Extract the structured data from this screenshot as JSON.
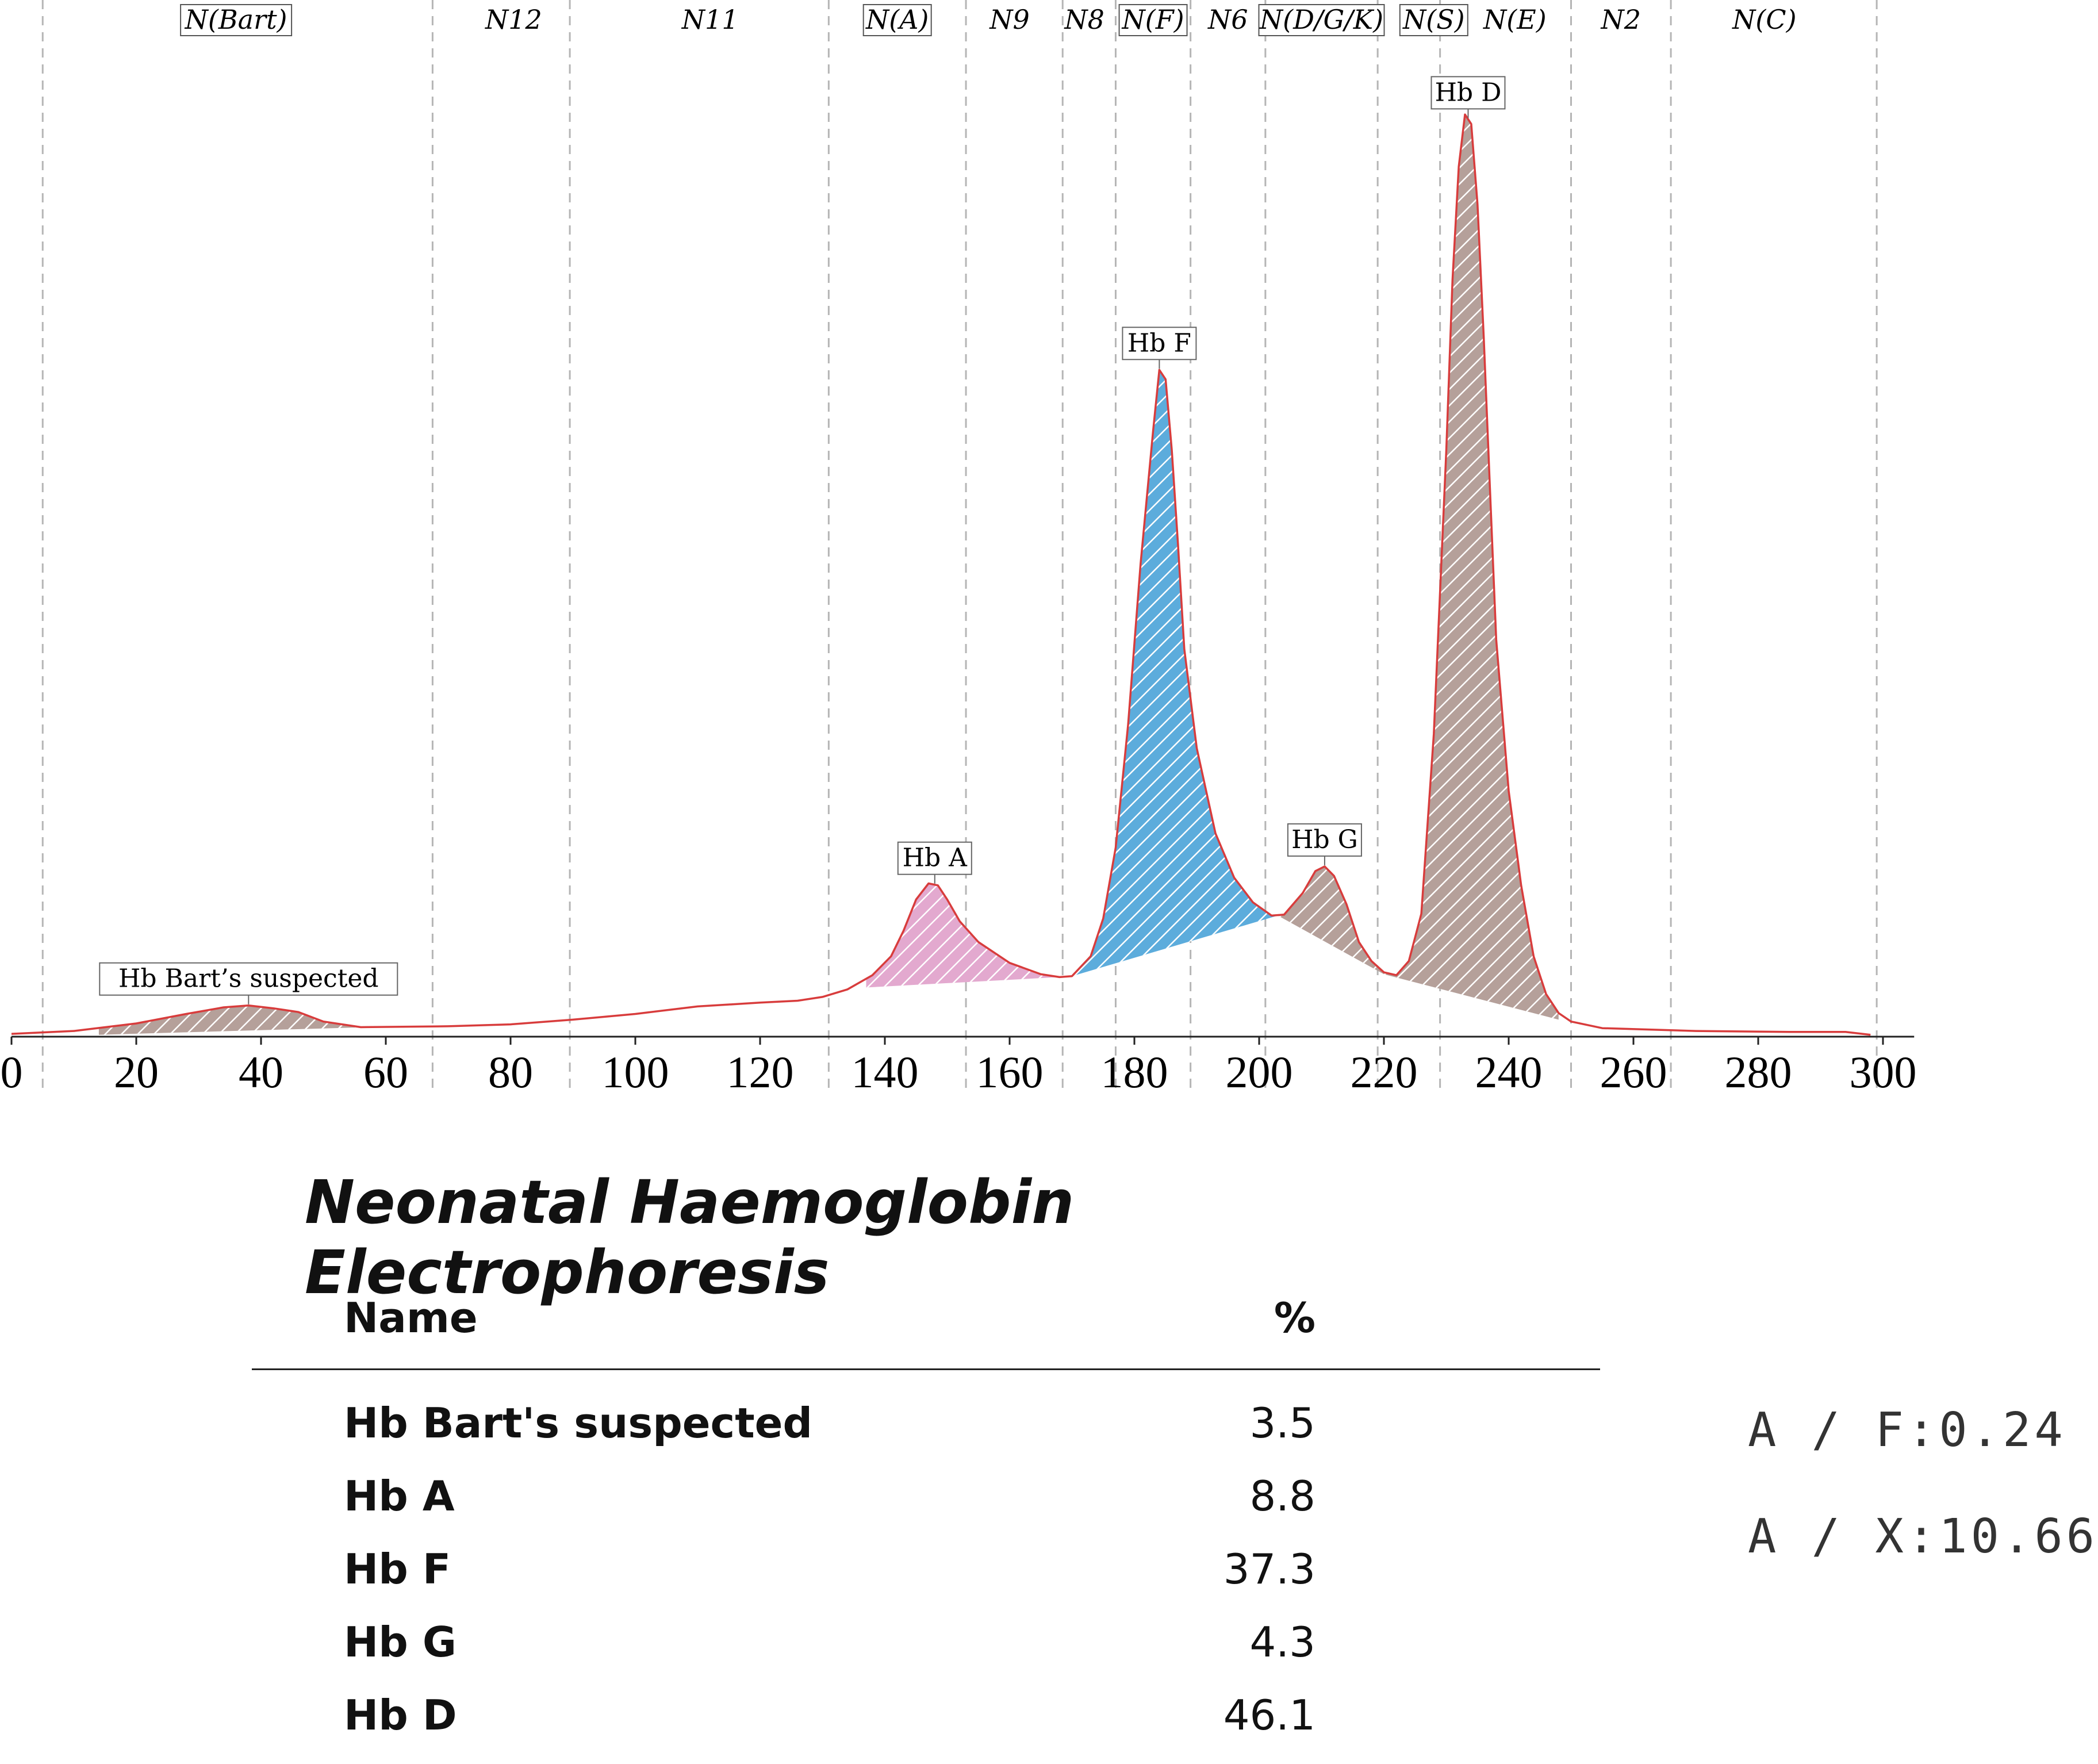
{
  "chart_data": {
    "type": "area",
    "title": "Neonatal Haemoglobin Electrophoresis",
    "xlim": [
      0,
      300
    ],
    "ylim": [
      0,
      100
    ],
    "x_ticks": [
      0,
      20,
      40,
      60,
      80,
      100,
      120,
      140,
      160,
      180,
      200,
      220,
      240,
      260,
      280,
      300
    ],
    "zone_boundaries": [
      5,
      67.5,
      89.5,
      131,
      153,
      168.5,
      177,
      189,
      201,
      219,
      229,
      250,
      266,
      299
    ],
    "zones": [
      {
        "label": "N(Bart)",
        "center": 36,
        "boxed": true
      },
      {
        "label": "N12",
        "center": 80.5,
        "boxed": false
      },
      {
        "label": "N11",
        "center": 112,
        "boxed": false
      },
      {
        "label": "N(A)",
        "center": 142,
        "boxed": true
      },
      {
        "label": "N9",
        "center": 160,
        "boxed": false
      },
      {
        "label": "N8",
        "center": 172,
        "boxed": false
      },
      {
        "label": "N(F)",
        "center": 183,
        "boxed": true
      },
      {
        "label": "N6",
        "center": 195,
        "boxed": false
      },
      {
        "label": "N(D/G/K)",
        "center": 210,
        "boxed": true
      },
      {
        "label": "N(S)",
        "center": 228,
        "boxed": true
      },
      {
        "label": "N(E)",
        "center": 241,
        "boxed": false
      },
      {
        "label": "N2",
        "center": 258,
        "boxed": false
      },
      {
        "label": "N(C)",
        "center": 281,
        "boxed": false
      }
    ],
    "trace": [
      [
        0,
        0.3
      ],
      [
        10,
        0.6
      ],
      [
        20,
        1.4
      ],
      [
        28,
        2.4
      ],
      [
        34,
        3.1
      ],
      [
        38,
        3.3
      ],
      [
        42,
        3.0
      ],
      [
        46,
        2.6
      ],
      [
        50,
        1.6
      ],
      [
        56,
        1.0
      ],
      [
        70,
        1.1
      ],
      [
        80,
        1.3
      ],
      [
        90,
        1.8
      ],
      [
        100,
        2.4
      ],
      [
        110,
        3.2
      ],
      [
        120,
        3.6
      ],
      [
        126,
        3.8
      ],
      [
        130,
        4.2
      ],
      [
        134,
        5.0
      ],
      [
        138,
        6.5
      ],
      [
        141,
        8.5
      ],
      [
        143,
        11.2
      ],
      [
        145,
        14.5
      ],
      [
        147,
        16.2
      ],
      [
        148.5,
        16.0
      ],
      [
        150,
        14.5
      ],
      [
        152,
        12.2
      ],
      [
        155,
        10.0
      ],
      [
        160,
        7.8
      ],
      [
        165,
        6.6
      ],
      [
        168,
        6.3
      ],
      [
        170,
        6.4
      ],
      [
        173,
        8.5
      ],
      [
        175,
        12.5
      ],
      [
        177,
        20.0
      ],
      [
        179,
        33.0
      ],
      [
        181,
        50.0
      ],
      [
        183,
        64.0
      ],
      [
        184,
        70.5
      ],
      [
        185,
        69.5
      ],
      [
        186,
        62.0
      ],
      [
        187,
        52.0
      ],
      [
        188,
        41.0
      ],
      [
        190,
        30.5
      ],
      [
        193,
        21.5
      ],
      [
        196,
        16.8
      ],
      [
        199,
        14.2
      ],
      [
        202,
        12.8
      ],
      [
        204,
        12.9
      ],
      [
        207,
        15.2
      ],
      [
        209,
        17.5
      ],
      [
        210.5,
        18.0
      ],
      [
        212,
        17.0
      ],
      [
        214,
        14.0
      ],
      [
        216,
        10.0
      ],
      [
        218,
        8.0
      ],
      [
        220,
        6.8
      ],
      [
        222,
        6.5
      ],
      [
        224,
        8.0
      ],
      [
        226,
        13.0
      ],
      [
        228,
        32.0
      ],
      [
        230,
        62.0
      ],
      [
        231,
        80.0
      ],
      [
        232,
        92.0
      ],
      [
        233,
        97.5
      ],
      [
        234,
        96.5
      ],
      [
        235,
        88.0
      ],
      [
        236,
        74.0
      ],
      [
        237,
        58.0
      ],
      [
        238,
        42.0
      ],
      [
        240,
        26.0
      ],
      [
        242,
        16.0
      ],
      [
        244,
        8.5
      ],
      [
        246,
        4.5
      ],
      [
        248,
        2.5
      ],
      [
        250,
        1.6
      ],
      [
        255,
        0.9
      ],
      [
        270,
        0.6
      ],
      [
        285,
        0.5
      ],
      [
        294,
        0.5
      ],
      [
        298,
        0.2
      ]
    ],
    "peaks": [
      {
        "name": "Hb Bart's suspected",
        "label": "Hb Bart’s suspected",
        "apex_x": 38,
        "percent": "3.5",
        "color": "#b5a09a",
        "range": [
          14,
          57
        ],
        "baseline": [
          [
            14,
            0.2
          ],
          [
            57,
            1.0
          ]
        ]
      },
      {
        "name": "Hb A",
        "label": "Hb A",
        "apex_x": 148,
        "percent": "8.8",
        "color": "#e3a9cf",
        "range": [
          137,
          168
        ],
        "baseline": [
          [
            137,
            5.2
          ],
          [
            168,
            6.3
          ]
        ]
      },
      {
        "name": "Hb F",
        "label": "Hb F",
        "apex_x": 184,
        "percent": "37.3",
        "color": "#5cacdc",
        "range": [
          170,
          203
        ],
        "baseline": [
          [
            170,
            6.4
          ],
          [
            203,
            12.8
          ]
        ]
      },
      {
        "name": "Hb G",
        "label": "Hb G",
        "apex_x": 210.5,
        "percent": "4.3",
        "color": "#b5a09a",
        "range": [
          203,
          220
        ],
        "baseline": [
          [
            203,
            12.8
          ],
          [
            220,
            6.6
          ]
        ]
      },
      {
        "name": "Hb D",
        "label": "Hb D",
        "apex_x": 233.5,
        "percent": "46.1",
        "color": "#b5a09a",
        "range": [
          220,
          248
        ],
        "baseline": [
          [
            220,
            6.6
          ],
          [
            248,
            1.8
          ]
        ]
      }
    ]
  },
  "table": {
    "header_name": "Name",
    "header_percent": "%",
    "rows": [
      {
        "name": "Hb Bart's suspected",
        "percent": "3.5"
      },
      {
        "name": "Hb A",
        "percent": "8.8"
      },
      {
        "name": "Hb F",
        "percent": "37.3"
      },
      {
        "name": "Hb G",
        "percent": "4.3"
      },
      {
        "name": "Hb D",
        "percent": "46.1"
      }
    ]
  },
  "ratios": {
    "a_f": "A / F:0.24",
    "a_x": "A / X:10.66"
  }
}
